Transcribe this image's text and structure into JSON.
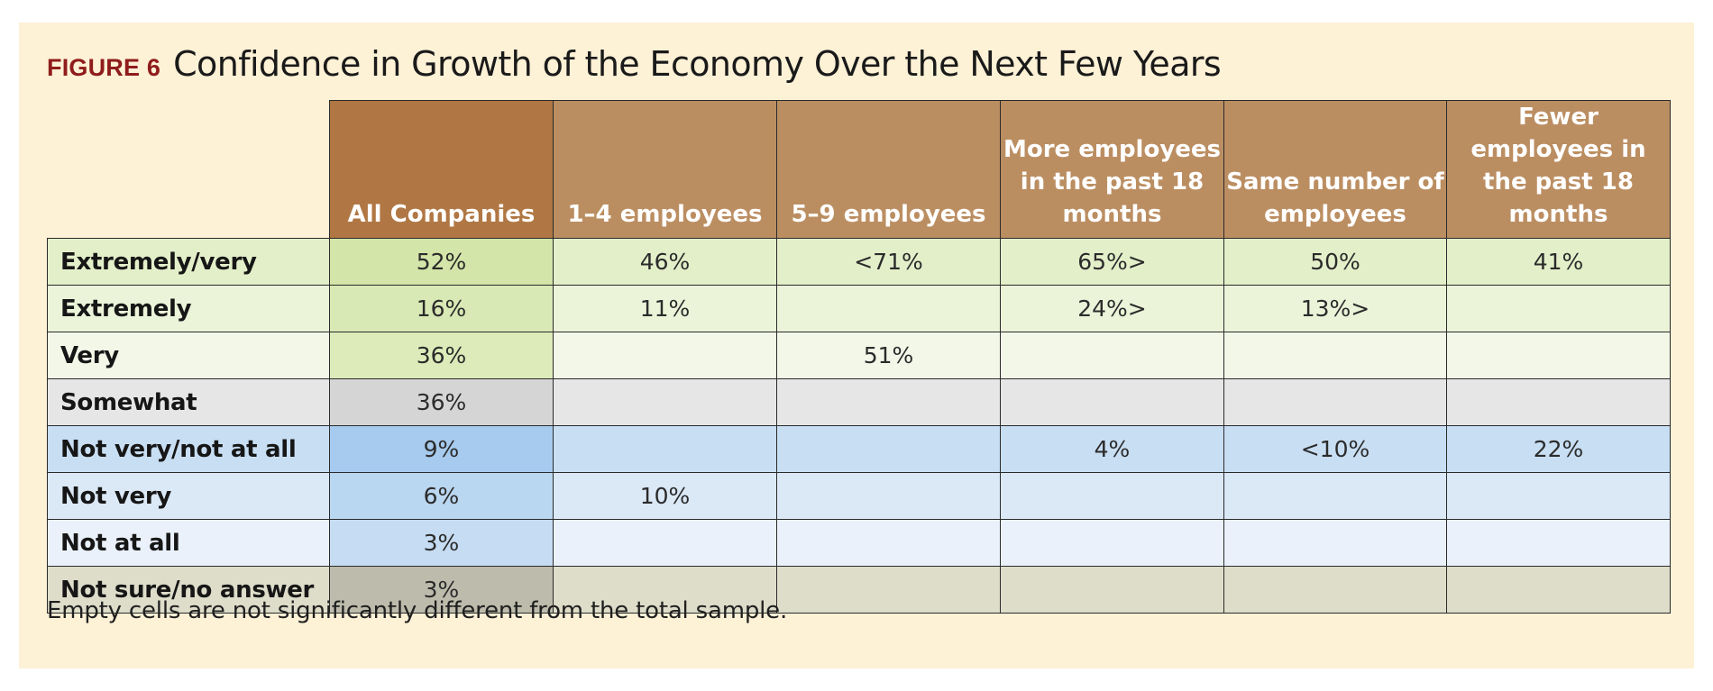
{
  "figure": {
    "label": "FIGURE 6",
    "title": "Confidence in Growth of the Economy Over the Next Few Years",
    "footnote": "Empty cells are not significantly different from the total sample."
  },
  "colors": {
    "header_all_companies": "#b07744",
    "header_other": "#bb8e62",
    "figure_label": "#8f1c1c",
    "panel_background": "#fdf1d6"
  },
  "chart_data": {
    "type": "table",
    "title": "Confidence in Growth of the Economy Over the Next Few Years",
    "columns": [
      "All Companies",
      "1–4 employees",
      "5–9 employees",
      "More employees in the past 18 months",
      "Same number of employees",
      "Fewer employees in the past 18 months"
    ],
    "rows": [
      {
        "label": "Extremely/very",
        "cells": [
          "52%",
          "46%",
          "<71%",
          "65%>",
          "50%",
          "41%"
        ]
      },
      {
        "label": "Extremely",
        "cells": [
          "16%",
          "11%",
          "",
          "24%>",
          "13%>",
          ""
        ]
      },
      {
        "label": "Very",
        "cells": [
          "36%",
          "",
          "51%",
          "",
          "",
          ""
        ]
      },
      {
        "label": "Somewhat",
        "cells": [
          "36%",
          "",
          "",
          "",
          "",
          ""
        ]
      },
      {
        "label": "Not very/not at all",
        "cells": [
          "9%",
          "",
          "",
          "4%",
          "<10%",
          "22%"
        ]
      },
      {
        "label": "Not very",
        "cells": [
          "6%",
          "10%",
          "",
          "",
          "",
          ""
        ]
      },
      {
        "label": "Not at all",
        "cells": [
          "3%",
          "",
          "",
          "",
          "",
          ""
        ]
      },
      {
        "label": "Not sure/no answer",
        "cells": [
          "3%",
          "",
          "",
          "",
          "",
          ""
        ]
      }
    ]
  }
}
